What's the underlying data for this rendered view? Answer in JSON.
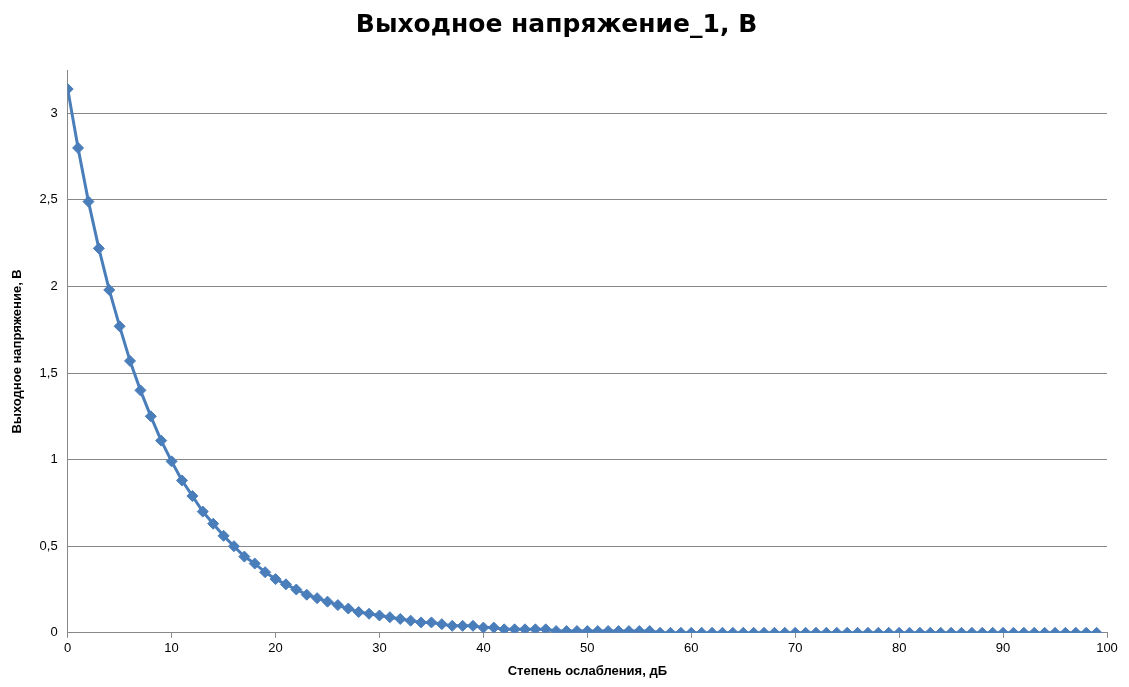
{
  "chart_data": {
    "type": "line",
    "title": "Выходное напряжение_1, В",
    "xlabel": "Степень ослабления, дБ",
    "ylabel": "Выходное напряжение, В",
    "x": [
      0,
      1,
      2,
      3,
      4,
      5,
      6,
      7,
      8,
      9,
      10,
      11,
      12,
      13,
      14,
      15,
      16,
      17,
      18,
      19,
      20,
      21,
      22,
      23,
      24,
      25,
      26,
      27,
      28,
      29,
      30,
      31,
      32,
      33,
      34,
      35,
      36,
      37,
      38,
      39,
      40,
      41,
      42,
      43,
      44,
      45,
      46,
      47,
      48,
      49,
      50,
      51,
      52,
      53,
      54,
      55,
      56,
      57,
      58,
      59,
      60,
      61,
      62,
      63,
      64,
      65,
      66,
      67,
      68,
      69,
      70,
      71,
      72,
      73,
      74,
      75,
      76,
      77,
      78,
      79,
      80,
      81,
      82,
      83,
      84,
      85,
      86,
      87,
      88,
      89,
      90,
      91,
      92,
      93,
      94,
      95,
      96,
      97,
      98,
      99
    ],
    "series": [
      {
        "color": "#4a7ebb",
        "values": [
          3.14,
          2.8,
          2.49,
          2.22,
          1.98,
          1.77,
          1.57,
          1.4,
          1.25,
          1.11,
          0.99,
          0.88,
          0.79,
          0.7,
          0.63,
          0.56,
          0.5,
          0.44,
          0.4,
          0.35,
          0.31,
          0.28,
          0.25,
          0.22,
          0.2,
          0.18,
          0.16,
          0.14,
          0.12,
          0.11,
          0.1,
          0.09,
          0.08,
          0.07,
          0.06,
          0.06,
          0.05,
          0.04,
          0.04,
          0.04,
          0.03,
          0.03,
          0.02,
          0.02,
          0.02,
          0.02,
          0.02,
          0.01,
          0.01,
          0.01,
          0.01,
          0.01,
          0.01,
          0.01,
          0.01,
          0.01,
          0.01,
          0,
          0,
          0,
          0,
          0,
          0,
          0,
          0,
          0,
          0,
          0,
          0,
          0,
          0,
          0,
          0,
          0,
          0,
          0,
          0,
          0,
          0,
          0,
          0,
          0,
          0,
          0,
          0,
          0,
          0,
          0,
          0,
          0,
          0,
          0,
          0,
          0,
          0,
          0,
          0,
          0,
          0,
          0
        ]
      }
    ],
    "xlim": [
      0,
      100
    ],
    "xticks": [
      0,
      10,
      20,
      30,
      40,
      50,
      60,
      70,
      80,
      90,
      100
    ],
    "ylim": [
      0,
      3.25
    ],
    "yticks": [
      0,
      {
        "value": 0.5,
        "label": "0,5"
      },
      1,
      {
        "value": 1.5,
        "label": "1,5"
      },
      2,
      {
        "value": 2.5,
        "label": "2,5"
      },
      3
    ],
    "grid": "y",
    "legend": false,
    "marker": "diamond",
    "line_style": "solid"
  }
}
